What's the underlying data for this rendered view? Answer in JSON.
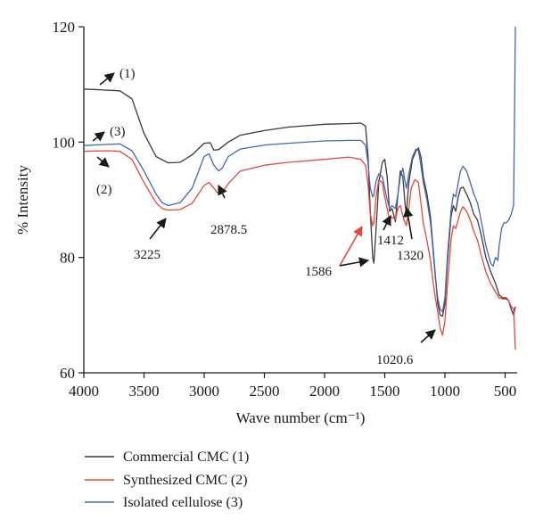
{
  "chart_data": {
    "type": "line",
    "title": "",
    "xlabel": "Wave number (cm⁻¹)",
    "ylabel": "% Intensity",
    "xlim": [
      4000,
      400
    ],
    "ylim": [
      60,
      120
    ],
    "x_reversed": true,
    "x_ticks": [
      "4000",
      "3500",
      "3000",
      "2500",
      "2000",
      "1500",
      "1000",
      "500"
    ],
    "x_tick_values": [
      4000,
      3500,
      3000,
      2500,
      2000,
      1500,
      1000,
      500
    ],
    "y_ticks": [
      "60",
      "80",
      "100",
      "120"
    ],
    "y_tick_values": [
      60,
      80,
      100,
      120
    ],
    "grid": false,
    "legend_position": "below-plot",
    "series": [
      {
        "name": "Commercial CMC (1)",
        "color": "#3a3a3a",
        "points": [
          [
            4000,
            109.2
          ],
          [
            3800,
            109.0
          ],
          [
            3700,
            108.9
          ],
          [
            3600,
            107.5
          ],
          [
            3500,
            101.5
          ],
          [
            3400,
            97.5
          ],
          [
            3300,
            96.4
          ],
          [
            3200,
            96.5
          ],
          [
            3100,
            97.8
          ],
          [
            3000,
            99.8
          ],
          [
            2950,
            99.9
          ],
          [
            2920,
            98.6
          ],
          [
            2880,
            98.7
          ],
          [
            2800,
            100.0
          ],
          [
            2700,
            101.2
          ],
          [
            2500,
            102.0
          ],
          [
            2300,
            102.6
          ],
          [
            2000,
            103.1
          ],
          [
            1800,
            103.2
          ],
          [
            1700,
            103.3
          ],
          [
            1660,
            102.8
          ],
          [
            1640,
            98.0
          ],
          [
            1620,
            88.0
          ],
          [
            1600,
            80.0
          ],
          [
            1590,
            79.0
          ],
          [
            1575,
            84.0
          ],
          [
            1550,
            93.0
          ],
          [
            1520,
            96.5
          ],
          [
            1500,
            97.0
          ],
          [
            1480,
            94.0
          ],
          [
            1460,
            88.0
          ],
          [
            1440,
            88.5
          ],
          [
            1420,
            87.0
          ],
          [
            1412,
            86.2
          ],
          [
            1395,
            90.0
          ],
          [
            1370,
            95.0
          ],
          [
            1350,
            94.0
          ],
          [
            1330,
            89.0
          ],
          [
            1320,
            87.8
          ],
          [
            1300,
            93.0
          ],
          [
            1270,
            97.0
          ],
          [
            1240,
            98.5
          ],
          [
            1220,
            99.0
          ],
          [
            1200,
            97.5
          ],
          [
            1180,
            94.0
          ],
          [
            1150,
            91.0
          ],
          [
            1120,
            87.0
          ],
          [
            1100,
            82.0
          ],
          [
            1080,
            77.0
          ],
          [
            1060,
            72.0
          ],
          [
            1040,
            70.0
          ],
          [
            1020,
            69.8
          ],
          [
            1000,
            72.0
          ],
          [
            980,
            79.0
          ],
          [
            950,
            87.0
          ],
          [
            930,
            89.0
          ],
          [
            910,
            88.0
          ],
          [
            890,
            90.5
          ],
          [
            870,
            92.0
          ],
          [
            850,
            92.2
          ],
          [
            820,
            91.0
          ],
          [
            790,
            89.5
          ],
          [
            760,
            87.5
          ],
          [
            730,
            86.5
          ],
          [
            700,
            84.0
          ],
          [
            660,
            80.0
          ],
          [
            620,
            77.5
          ],
          [
            580,
            75.5
          ],
          [
            550,
            73.5
          ],
          [
            520,
            73.0
          ],
          [
            490,
            73.0
          ],
          [
            470,
            72.5
          ],
          [
            450,
            71.0
          ],
          [
            430,
            70.0
          ],
          [
            415,
            71.5
          ]
        ]
      },
      {
        "name": "Synthesized CMC (2)",
        "color": "#e8463b",
        "points": [
          [
            4000,
            98.4
          ],
          [
            3800,
            98.5
          ],
          [
            3700,
            98.4
          ],
          [
            3600,
            97.0
          ],
          [
            3500,
            93.0
          ],
          [
            3400,
            89.5
          ],
          [
            3350,
            88.5
          ],
          [
            3300,
            88.2
          ],
          [
            3200,
            88.3
          ],
          [
            3100,
            89.4
          ],
          [
            3000,
            92.5
          ],
          [
            2960,
            93.0
          ],
          [
            2920,
            92.0
          ],
          [
            2880,
            91.0
          ],
          [
            2850,
            91.2
          ],
          [
            2800,
            92.8
          ],
          [
            2700,
            95.0
          ],
          [
            2500,
            96.0
          ],
          [
            2300,
            96.5
          ],
          [
            2000,
            97.0
          ],
          [
            1800,
            97.4
          ],
          [
            1700,
            97.0
          ],
          [
            1660,
            96.0
          ],
          [
            1640,
            93.0
          ],
          [
            1620,
            87.5
          ],
          [
            1600,
            85.5
          ],
          [
            1590,
            86.0
          ],
          [
            1575,
            90.0
          ],
          [
            1550,
            93.5
          ],
          [
            1520,
            93.0
          ],
          [
            1500,
            90.5
          ],
          [
            1480,
            88.5
          ],
          [
            1460,
            86.5
          ],
          [
            1440,
            87.0
          ],
          [
            1412,
            86.6
          ],
          [
            1390,
            88.5
          ],
          [
            1370,
            89.0
          ],
          [
            1340,
            86.5
          ],
          [
            1320,
            85.5
          ],
          [
            1300,
            88.5
          ],
          [
            1280,
            92.0
          ],
          [
            1250,
            93.5
          ],
          [
            1220,
            93.0
          ],
          [
            1200,
            89.5
          ],
          [
            1180,
            86.0
          ],
          [
            1150,
            83.0
          ],
          [
            1120,
            79.5
          ],
          [
            1100,
            76.0
          ],
          [
            1080,
            73.0
          ],
          [
            1060,
            70.5
          ],
          [
            1040,
            67.8
          ],
          [
            1020,
            66.5
          ],
          [
            1000,
            69.0
          ],
          [
            980,
            75.0
          ],
          [
            950,
            83.0
          ],
          [
            930,
            85.5
          ],
          [
            910,
            85.0
          ],
          [
            890,
            86.5
          ],
          [
            870,
            88.0
          ],
          [
            850,
            88.8
          ],
          [
            820,
            88.0
          ],
          [
            790,
            86.5
          ],
          [
            760,
            84.5
          ],
          [
            730,
            83.0
          ],
          [
            700,
            80.5
          ],
          [
            660,
            77.5
          ],
          [
            620,
            75.5
          ],
          [
            580,
            74.0
          ],
          [
            550,
            73.0
          ],
          [
            520,
            72.8
          ],
          [
            490,
            72.8
          ],
          [
            470,
            72.5
          ],
          [
            450,
            71.5
          ],
          [
            430,
            71.0
          ],
          [
            415,
            64.0
          ]
        ]
      },
      {
        "name": "Isolated cellulose (3)",
        "color": "#4466b8",
        "points": [
          [
            4000,
            99.4
          ],
          [
            3800,
            99.6
          ],
          [
            3700,
            99.7
          ],
          [
            3600,
            98.5
          ],
          [
            3500,
            95.0
          ],
          [
            3400,
            91.0
          ],
          [
            3350,
            89.5
          ],
          [
            3300,
            89.0
          ],
          [
            3200,
            89.5
          ],
          [
            3100,
            92.0
          ],
          [
            3000,
            97.5
          ],
          [
            2960,
            98.0
          ],
          [
            2920,
            96.0
          ],
          [
            2880,
            95.0
          ],
          [
            2850,
            95.5
          ],
          [
            2800,
            97.5
          ],
          [
            2700,
            98.8
          ],
          [
            2500,
            99.5
          ],
          [
            2300,
            99.8
          ],
          [
            2000,
            100.2
          ],
          [
            1800,
            100.3
          ],
          [
            1700,
            100.3
          ],
          [
            1660,
            99.5
          ],
          [
            1640,
            96.5
          ],
          [
            1620,
            92.0
          ],
          [
            1600,
            90.5
          ],
          [
            1590,
            90.8
          ],
          [
            1575,
            93.0
          ],
          [
            1550,
            94.5
          ],
          [
            1520,
            94.0
          ],
          [
            1500,
            92.0
          ],
          [
            1480,
            90.0
          ],
          [
            1460,
            88.5
          ],
          [
            1440,
            89.0
          ],
          [
            1412,
            88.5
          ],
          [
            1390,
            91.0
          ],
          [
            1370,
            94.0
          ],
          [
            1350,
            95.5
          ],
          [
            1330,
            93.0
          ],
          [
            1320,
            92.0
          ],
          [
            1300,
            94.5
          ],
          [
            1270,
            97.5
          ],
          [
            1240,
            98.8
          ],
          [
            1220,
            98.5
          ],
          [
            1200,
            96.0
          ],
          [
            1180,
            93.0
          ],
          [
            1150,
            90.0
          ],
          [
            1120,
            86.0
          ],
          [
            1100,
            81.5
          ],
          [
            1080,
            76.5
          ],
          [
            1060,
            73.0
          ],
          [
            1040,
            71.0
          ],
          [
            1020,
            70.6
          ],
          [
            1000,
            73.0
          ],
          [
            980,
            80.0
          ],
          [
            950,
            88.0
          ],
          [
            930,
            91.0
          ],
          [
            910,
            90.5
          ],
          [
            890,
            93.0
          ],
          [
            870,
            95.0
          ],
          [
            850,
            95.8
          ],
          [
            820,
            95.0
          ],
          [
            790,
            93.0
          ],
          [
            760,
            91.0
          ],
          [
            730,
            89.5
          ],
          [
            700,
            86.5
          ],
          [
            660,
            82.0
          ],
          [
            620,
            79.0
          ],
          [
            600,
            78.5
          ],
          [
            580,
            80.0
          ],
          [
            560,
            79.5
          ],
          [
            550,
            82.0
          ],
          [
            530,
            85.0
          ],
          [
            510,
            86.0
          ],
          [
            490,
            86.0
          ],
          [
            470,
            86.5
          ],
          [
            450,
            87.5
          ],
          [
            430,
            89.0
          ],
          [
            415,
            120.0
          ]
        ]
      }
    ],
    "annotations": [
      {
        "text": "(1)"
      },
      {
        "text": "(3)"
      },
      {
        "text": "(2)"
      },
      {
        "text": "3225"
      },
      {
        "text": "2878.5"
      },
      {
        "text": "1586"
      },
      {
        "text": "1412"
      },
      {
        "text": "1320"
      },
      {
        "text": "1020.6"
      }
    ]
  }
}
